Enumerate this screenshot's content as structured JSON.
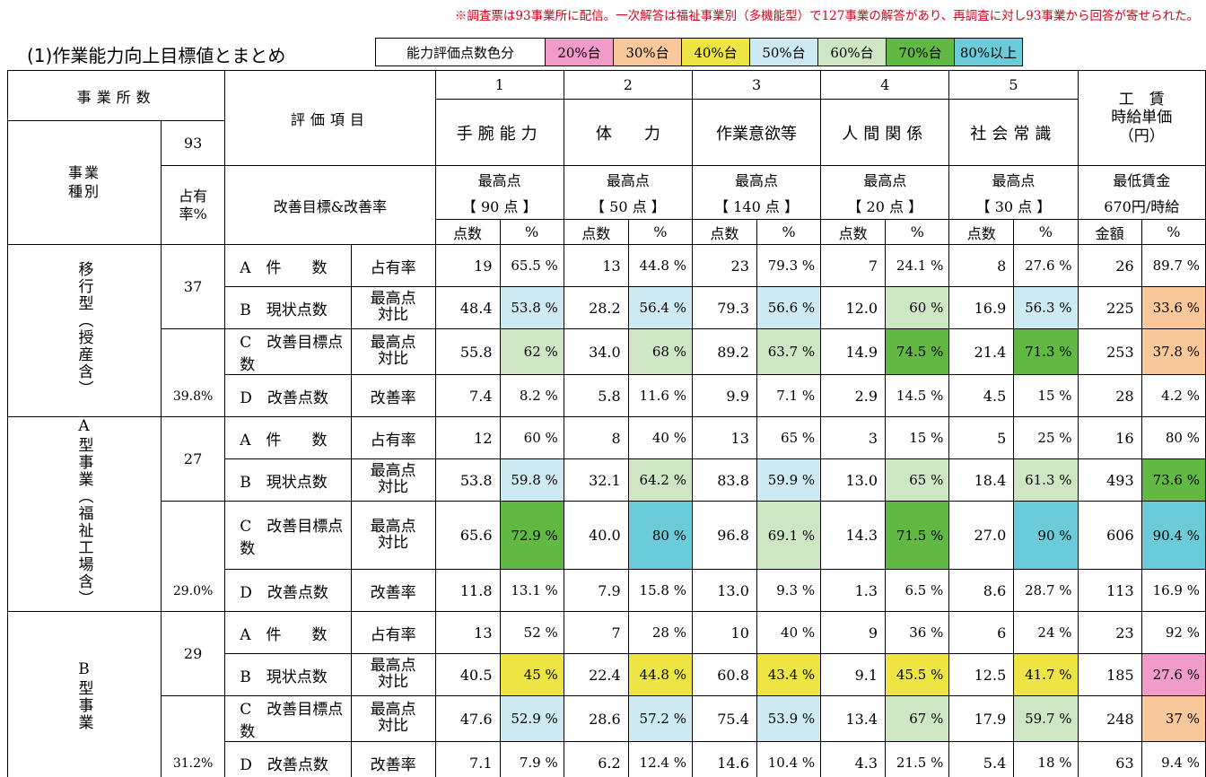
{
  "note": "※調査票は93事業所に配信。一次解答は福祉事業別（多機能型）で127事業の解答があり、再調査に対し93事業から回答が寄せられた。",
  "title": "(1)作業能力向上目標値とまとめ",
  "legend": {
    "label": "能力評価点数色分",
    "items": [
      "20%台",
      "30%台",
      "40%台",
      "50%台",
      "60%台",
      "70%台",
      "80%以上"
    ],
    "colors": {
      "20%台": "#f09bc8",
      "30%台": "#f9c89a",
      "40%台": "#eee443",
      "50%台": "#cdeaf3",
      "60%台": "#cfe6c5",
      "70%台": "#61b944",
      "80%以上": "#6ccbd9"
    }
  },
  "header": {
    "offices_label": "事業所数",
    "offices_count": "93",
    "category_label": "事業種別",
    "share_label": "占有率%",
    "eval_label": "評価項目",
    "target_label": "改善目標&改善率",
    "columns": [
      {
        "no": "1",
        "name": "手腕能力",
        "max_label": "最高点",
        "max_value": "【 90 点 】"
      },
      {
        "no": "2",
        "name": "体　　力",
        "max_label": "最高点",
        "max_value": "【 50 点 】"
      },
      {
        "no": "3",
        "name": "作業意欲等",
        "max_label": "最高点",
        "max_value": "【 140 点 】"
      },
      {
        "no": "4",
        "name": "人間関係",
        "max_label": "最高点",
        "max_value": "【 20 点 】"
      },
      {
        "no": "5",
        "name": "社会常識",
        "max_label": "最高点",
        "max_value": "【 30 点 】"
      }
    ],
    "wage": {
      "name": "工　賃\n時給単価\n（円）",
      "min_label": "最低賃金",
      "min_value": "670円/時給"
    },
    "sub_points": "点数",
    "sub_pct": "%",
    "sub_amount": "金額"
  },
  "groups": [
    {
      "type": "移行型（授産含）",
      "count": "37",
      "share": "39.8%",
      "rows": [
        {
          "item": "A　件　　数",
          "metric": "占有率",
          "cells": [
            [
              "19",
              "65.5 %"
            ],
            [
              "13",
              "44.8 %"
            ],
            [
              "23",
              "79.3 %"
            ],
            [
              "7",
              "24.1 %"
            ],
            [
              "8",
              "27.6 %"
            ],
            [
              "26",
              "89.7 %"
            ]
          ],
          "colors": [
            "",
            "",
            "",
            "",
            "",
            ""
          ]
        },
        {
          "item": "B　現状点数",
          "metric": "最高点対比",
          "cells": [
            [
              "48.4",
              "53.8 %"
            ],
            [
              "28.2",
              "56.4 %"
            ],
            [
              "79.3",
              "56.6 %"
            ],
            [
              "12.0",
              "60 %"
            ],
            [
              "16.9",
              "56.3 %"
            ],
            [
              "225",
              "33.6 %"
            ]
          ],
          "colors": [
            "c50",
            "c50",
            "c50",
            "c60",
            "c50",
            "c30"
          ]
        },
        {
          "item": "C　改善目標点数",
          "metric": "最高点対比",
          "cells": [
            [
              "55.8",
              "62 %"
            ],
            [
              "34.0",
              "68 %"
            ],
            [
              "89.2",
              "63.7 %"
            ],
            [
              "14.9",
              "74.5 %"
            ],
            [
              "21.4",
              "71.3 %"
            ],
            [
              "253",
              "37.8 %"
            ]
          ],
          "colors": [
            "c60",
            "c60",
            "c60",
            "c70",
            "c70",
            "c30"
          ]
        },
        {
          "item": "D　改善点数",
          "metric": "改善率",
          "cells": [
            [
              "7.4",
              "8.2 %"
            ],
            [
              "5.8",
              "11.6 %"
            ],
            [
              "9.9",
              "7.1 %"
            ],
            [
              "2.9",
              "14.5 %"
            ],
            [
              "4.5",
              "15 %"
            ],
            [
              "28",
              "4.2 %"
            ]
          ],
          "colors": [
            "",
            "",
            "",
            "",
            "",
            ""
          ]
        }
      ]
    },
    {
      "type": "A型事業（福祉工場含）",
      "count": "27",
      "share": "29.0%",
      "rows": [
        {
          "item": "A　件　　数",
          "metric": "占有率",
          "cells": [
            [
              "12",
              "60 %"
            ],
            [
              "8",
              "40 %"
            ],
            [
              "13",
              "65 %"
            ],
            [
              "3",
              "15 %"
            ],
            [
              "5",
              "25 %"
            ],
            [
              "16",
              "80 %"
            ]
          ],
          "colors": [
            "",
            "",
            "",
            "",
            "",
            ""
          ]
        },
        {
          "item": "B　現状点数",
          "metric": "最高点対比",
          "cells": [
            [
              "53.8",
              "59.8 %"
            ],
            [
              "32.1",
              "64.2 %"
            ],
            [
              "83.8",
              "59.9 %"
            ],
            [
              "13.0",
              "65 %"
            ],
            [
              "18.4",
              "61.3 %"
            ],
            [
              "493",
              "73.6 %"
            ]
          ],
          "colors": [
            "c50",
            "c60",
            "c50",
            "c60",
            "c60",
            "c70"
          ]
        },
        {
          "item": "C　改善目標点数",
          "metric": "最高点対比",
          "cells": [
            [
              "65.6",
              "72.9 %"
            ],
            [
              "40.0",
              "80 %"
            ],
            [
              "96.8",
              "69.1 %"
            ],
            [
              "14.3",
              "71.5 %"
            ],
            [
              "27.0",
              "90 %"
            ],
            [
              "606",
              "90.4 %"
            ]
          ],
          "colors": [
            "c70",
            "c80",
            "c60",
            "c70",
            "c80",
            "c80"
          ]
        },
        {
          "item": "D　改善点数",
          "metric": "改善率",
          "cells": [
            [
              "11.8",
              "13.1 %"
            ],
            [
              "7.9",
              "15.8 %"
            ],
            [
              "13.0",
              "9.3 %"
            ],
            [
              "1.3",
              "6.5 %"
            ],
            [
              "8.6",
              "28.7 %"
            ],
            [
              "113",
              "16.9 %"
            ]
          ],
          "colors": [
            "",
            "",
            "",
            "",
            "",
            ""
          ]
        }
      ]
    },
    {
      "type": "B型事業",
      "count": "29",
      "share": "31.2%",
      "rows": [
        {
          "item": "A　件　　数",
          "metric": "占有率",
          "cells": [
            [
              "13",
              "52 %"
            ],
            [
              "7",
              "28 %"
            ],
            [
              "10",
              "40 %"
            ],
            [
              "9",
              "36 %"
            ],
            [
              "6",
              "24 %"
            ],
            [
              "23",
              "92 %"
            ]
          ],
          "colors": [
            "",
            "",
            "",
            "",
            "",
            ""
          ]
        },
        {
          "item": "B　現状点数",
          "metric": "最高点対比",
          "cells": [
            [
              "40.5",
              "45 %"
            ],
            [
              "22.4",
              "44.8 %"
            ],
            [
              "60.8",
              "43.4 %"
            ],
            [
              "9.1",
              "45.5 %"
            ],
            [
              "12.5",
              "41.7 %"
            ],
            [
              "185",
              "27.6 %"
            ]
          ],
          "colors": [
            "c40",
            "c40",
            "c40",
            "c40",
            "c40",
            "c20"
          ]
        },
        {
          "item": "C　改善目標点数",
          "metric": "最高点対比",
          "cells": [
            [
              "47.6",
              "52.9 %"
            ],
            [
              "28.6",
              "57.2 %"
            ],
            [
              "75.4",
              "53.9 %"
            ],
            [
              "13.4",
              "67 %"
            ],
            [
              "17.9",
              "59.7 %"
            ],
            [
              "248",
              "37 %"
            ]
          ],
          "colors": [
            "c50",
            "c50",
            "c50",
            "c60",
            "c60",
            "c30"
          ]
        },
        {
          "item": "D　改善点数",
          "metric": "改善率",
          "cells": [
            [
              "7.1",
              "7.9 %"
            ],
            [
              "6.2",
              "12.4 %"
            ],
            [
              "14.6",
              "10.4 %"
            ],
            [
              "4.3",
              "21.5 %"
            ],
            [
              "5.4",
              "18 %"
            ],
            [
              "63",
              "9.4 %"
            ]
          ],
          "colors": [
            "",
            "",
            "",
            "",
            "",
            ""
          ]
        }
      ]
    }
  ]
}
